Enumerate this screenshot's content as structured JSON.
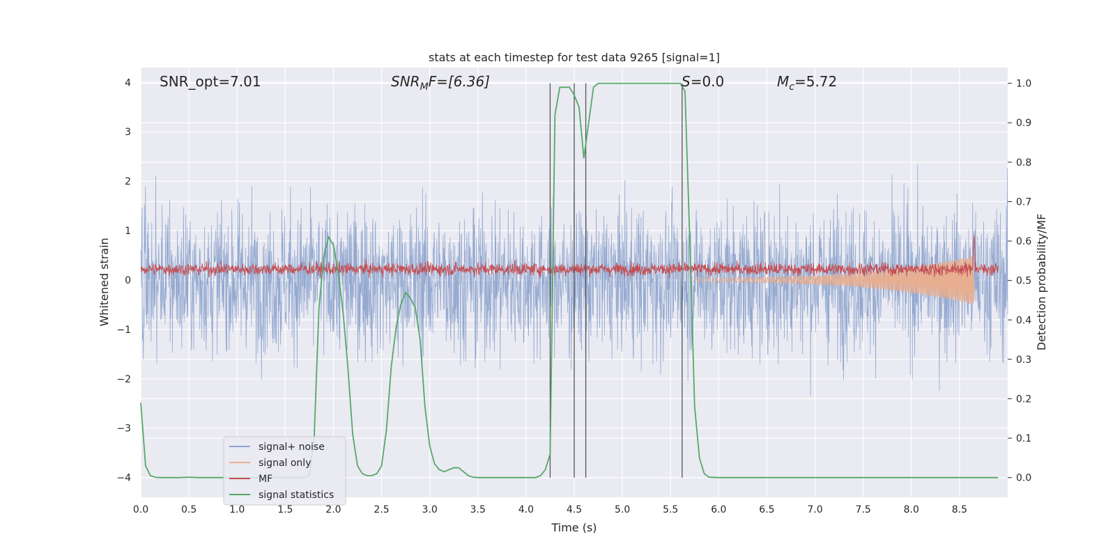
{
  "chart_data": {
    "type": "line",
    "title": "stats at each timestep for test data 9265 [signal=1]",
    "xlabel": "Time (s)",
    "ylabel_left": "Whitened strain",
    "ylabel_right": "Detection probability/MF",
    "xlim": [
      0,
      9
    ],
    "ylim_left": [
      -4.4,
      4.3
    ],
    "ylim_right": [
      -0.05,
      1.04
    ],
    "x_ticks": [
      "0.0",
      "0.5",
      "1.0",
      "1.5",
      "2.0",
      "2.5",
      "3.0",
      "3.5",
      "4.0",
      "4.5",
      "5.0",
      "5.5",
      "6.0",
      "6.5",
      "7.0",
      "7.5",
      "8.0",
      "8.5"
    ],
    "y_ticks_left": [
      "4",
      "3",
      "2",
      "1",
      "0",
      "−1",
      "−2",
      "−3",
      "−4"
    ],
    "y_ticks_right": [
      "1.0",
      "0.9",
      "0.8",
      "0.7",
      "0.6",
      "0.5",
      "0.4",
      "0.3",
      "0.2",
      "0.1",
      "0.0"
    ],
    "grid": true,
    "background": "#EAEAF2",
    "annotations": {
      "snr_opt": "SNR_opt=7.01",
      "snr_mf_main": "SNR",
      "snr_mf_sub": "M",
      "snr_mf_rest": "F=[6.36]",
      "s_main": "S",
      "s_rest": "=0.0",
      "mc_main": "M",
      "mc_sub": "c",
      "mc_rest": "=5.72"
    },
    "vertical_lines_x": [
      4.25,
      4.5,
      4.62,
      5.62
    ],
    "legend": {
      "placement": "lower-left",
      "entries": [
        {
          "label": "signal+ noise",
          "color": "#8FA5CE"
        },
        {
          "label": "signal only",
          "color": "#E8AE90"
        },
        {
          "label": "MF",
          "color": "#C44E52"
        },
        {
          "label": "signal statistics",
          "color": "#55A868"
        }
      ]
    },
    "series": [
      {
        "name": "signal statistics",
        "axis": "right",
        "color": "#55A868",
        "x": [
          0,
          0.05,
          0.1,
          0.15,
          0.2,
          0.3,
          0.4,
          0.5,
          0.6,
          0.7,
          0.8,
          0.9,
          1.0,
          1.2,
          1.4,
          1.6,
          1.7,
          1.75,
          1.8,
          1.85,
          1.9,
          1.95,
          2.0,
          2.05,
          2.1,
          2.15,
          2.2,
          2.25,
          2.3,
          2.35,
          2.4,
          2.45,
          2.5,
          2.55,
          2.6,
          2.65,
          2.7,
          2.75,
          2.8,
          2.85,
          2.9,
          2.95,
          3.0,
          3.05,
          3.1,
          3.15,
          3.2,
          3.25,
          3.3,
          3.35,
          3.4,
          3.45,
          3.5,
          3.55,
          3.6,
          3.7,
          3.8,
          3.9,
          4.0,
          4.1,
          4.15,
          4.2,
          4.25,
          4.3,
          4.35,
          4.4,
          4.45,
          4.5,
          4.55,
          4.6,
          4.65,
          4.7,
          4.75,
          4.8,
          5.0,
          5.2,
          5.4,
          5.5,
          5.55,
          5.6,
          5.65,
          5.7,
          5.75,
          5.8,
          5.85,
          5.9,
          6.0,
          6.5,
          7.0,
          7.5,
          8.0,
          8.5,
          8.9
        ],
        "y": [
          0.19,
          0.03,
          0.005,
          0.001,
          0.0,
          0.0,
          0.0,
          0.001,
          0.0,
          0.0,
          0.0,
          0.0,
          0.0,
          0.0,
          0.0,
          0.0,
          0.0,
          0.005,
          0.1,
          0.43,
          0.56,
          0.61,
          0.59,
          0.52,
          0.42,
          0.28,
          0.11,
          0.03,
          0.01,
          0.005,
          0.005,
          0.01,
          0.03,
          0.12,
          0.28,
          0.38,
          0.44,
          0.47,
          0.455,
          0.43,
          0.35,
          0.18,
          0.08,
          0.035,
          0.02,
          0.015,
          0.02,
          0.025,
          0.025,
          0.015,
          0.005,
          0.001,
          0.0,
          0.0,
          0.0,
          0.0,
          0.0,
          0.0,
          0.0,
          0.0,
          0.005,
          0.02,
          0.06,
          0.92,
          0.99,
          0.99,
          0.99,
          0.97,
          0.94,
          0.81,
          0.9,
          0.99,
          1.0,
          1.0,
          1.0,
          1.0,
          1.0,
          1.0,
          1.0,
          1.0,
          0.98,
          0.6,
          0.18,
          0.05,
          0.01,
          0.001,
          0.0,
          0.0,
          0.0,
          0.0,
          0.0,
          0.0,
          0.0
        ]
      },
      {
        "name": "signal+ noise",
        "axis": "left",
        "color": "#8FA5CE",
        "description_values": "dense noise roughly between -3.7 and 3.7 across 0 to 9 s"
      },
      {
        "name": "MF",
        "axis": "left",
        "color": "#C44E52",
        "description_values": "noise roughly between 0.0 and 0.5, spike near 8.65 s to 1.0"
      },
      {
        "name": "signal only",
        "axis": "left",
        "color": "#E8AE90",
        "description_values": "chirp envelope growing from ~0.05 amplitude at 5.7 s to ~0.5 at 8.65 s, then zero"
      }
    ]
  }
}
